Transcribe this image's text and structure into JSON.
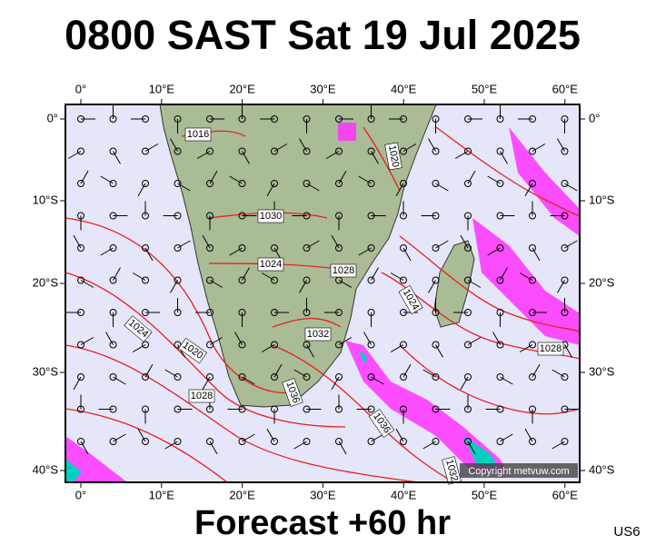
{
  "title": "0800 SAST Sat 19 Jul 2025",
  "footer": "Forecast +60 hr",
  "code": "US6",
  "copyright": "Copyright metvuw.com",
  "lon_labels": [
    "0°",
    "10°E",
    "20°E",
    "30°E",
    "40°E",
    "50°E",
    "60°E"
  ],
  "lat_labels": [
    "0°",
    "10°S",
    "20°S",
    "30°S",
    "40°S"
  ],
  "isobar_labels": [
    "1016",
    "1020",
    "1030",
    "1024",
    "1028",
    "1024",
    "1024",
    "1020",
    "1032",
    "1028",
    "1036",
    "1036",
    "1028",
    "1032"
  ]
}
